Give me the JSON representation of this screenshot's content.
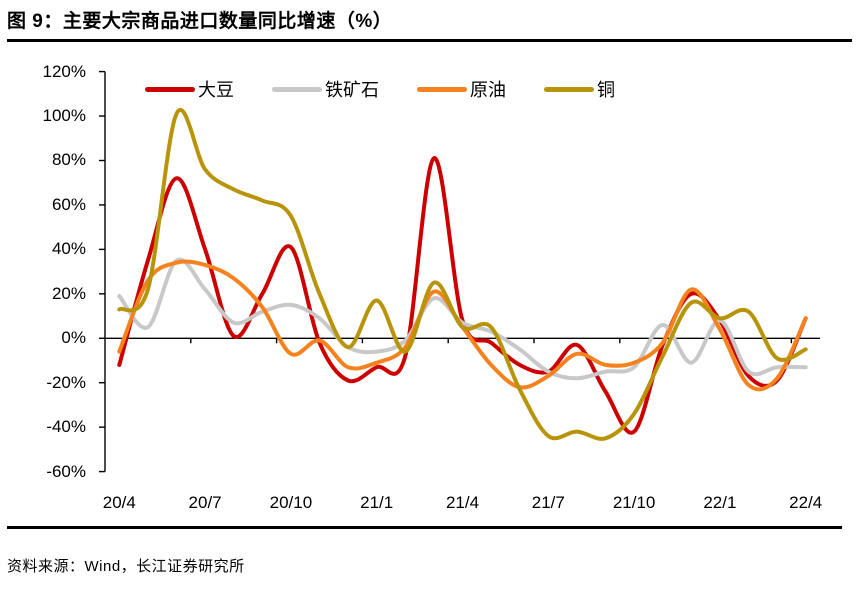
{
  "header": {
    "title": "图 9：主要大宗商品进口数量同比增速（%）"
  },
  "footer": {
    "source": "资料来源：Wind，长江证券研究所"
  },
  "colors": {
    "soybean": "#CC0000",
    "iron_ore": "#C8C8C8",
    "crude_oil": "#F5821E",
    "copper": "#B8940B",
    "axis": "#000000"
  },
  "chart_data": {
    "type": "line",
    "title": "主要大宗商品进口数量同比增速（%）",
    "x": [
      "20/4",
      "20/5",
      "20/6",
      "20/7",
      "20/8",
      "20/9",
      "20/10",
      "20/11",
      "20/12",
      "21/1",
      "21/2",
      "21/3",
      "21/4",
      "21/5",
      "21/6",
      "21/7",
      "21/8",
      "21/9",
      "21/10",
      "21/11",
      "21/12",
      "22/1",
      "22/2",
      "22/3",
      "22/4"
    ],
    "x_tick_labels": [
      "20/4",
      "20/7",
      "20/10",
      "21/1",
      "21/4",
      "21/7",
      "21/10",
      "22/1",
      "22/4"
    ],
    "y_tick_labels": [
      "120%",
      "100%",
      "80%",
      "60%",
      "40%",
      "20%",
      "0%",
      "-20%",
      "-40%",
      "-60%"
    ],
    "ylim": [
      -60,
      120
    ],
    "y_step": 20,
    "grid": false,
    "legend_position": "top",
    "unit": "%",
    "series": [
      {
        "name": "大豆",
        "key": "soybean",
        "values": [
          -12,
          35,
          72,
          40,
          1,
          20,
          41,
          -2,
          -19,
          -13,
          -8,
          81,
          8,
          -2,
          -12,
          -15,
          -3,
          -24,
          -42,
          -3,
          20,
          8,
          -17,
          -19,
          9
        ]
      },
      {
        "name": "铁矿石",
        "key": "iron-ore",
        "values": [
          19,
          5,
          35,
          22,
          7,
          12,
          15,
          9,
          -4,
          -6,
          -1,
          18,
          7,
          3,
          -5,
          -15,
          -18,
          -15,
          -13,
          6,
          -11,
          8,
          -15,
          -13,
          -13
        ]
      },
      {
        "name": "原油",
        "key": "crude-oil",
        "values": [
          -6,
          26,
          34,
          33,
          27,
          14,
          -7,
          -1,
          -13,
          -11,
          -4,
          21,
          5,
          -12,
          -22,
          -17,
          -7,
          -12,
          -11,
          -2,
          22,
          4,
          -21,
          -18,
          9
        ]
      },
      {
        "name": "铜",
        "key": "copper",
        "values": [
          13,
          22,
          101,
          76,
          67,
          62,
          55,
          20,
          -4,
          17,
          -6,
          25,
          5,
          5,
          -23,
          -44,
          -42,
          -45,
          -34,
          -8,
          16,
          9,
          12,
          -9,
          -5
        ]
      }
    ]
  }
}
